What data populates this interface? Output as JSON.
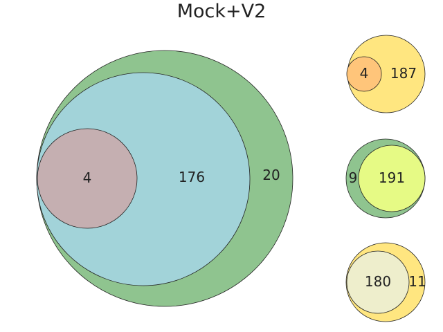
{
  "title": "Mock+V2",
  "colors": {
    "green": "#8fc48f",
    "teal": "#a2d3d9",
    "mauve": "#c5afb1",
    "yellow": "#ffe680",
    "orange": "#ffc57a",
    "lime": "#e6fa85",
    "cream": "#eeeecc"
  },
  "main_diagram": {
    "labels": [
      "4",
      "176",
      "20"
    ]
  },
  "small_diagrams": [
    {
      "labels": [
        "4",
        "187"
      ]
    },
    {
      "labels": [
        "9",
        "191"
      ]
    },
    {
      "labels": [
        "180",
        "11"
      ]
    }
  ]
}
